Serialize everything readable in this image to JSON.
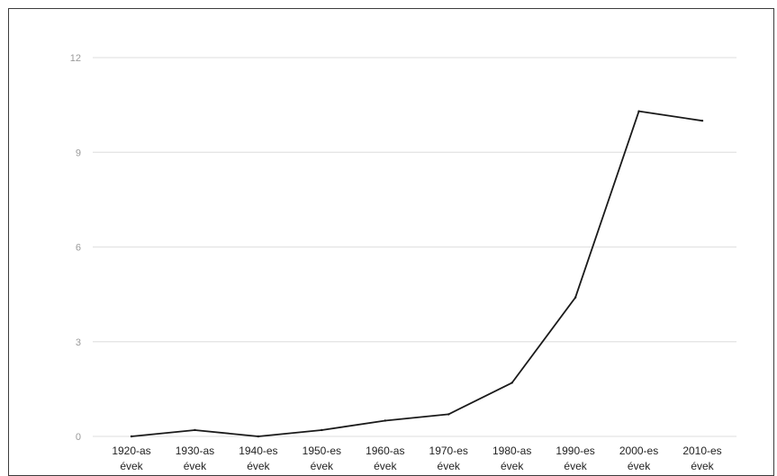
{
  "chart_data": {
    "type": "line",
    "categories": [
      [
        "1920-as",
        "évek"
      ],
      [
        "1930-as",
        "évek"
      ],
      [
        "1940-es",
        "évek"
      ],
      [
        "1950-es",
        "évek"
      ],
      [
        "1960-as",
        "évek"
      ],
      [
        "1970-es",
        "évek"
      ],
      [
        "1980-as",
        "évek"
      ],
      [
        "1990-es",
        "évek"
      ],
      [
        "2000-es",
        "évek"
      ],
      [
        "2010-es",
        "évek"
      ]
    ],
    "series": [
      {
        "values": [
          0,
          0.2,
          0,
          0.2,
          0.5,
          0.7,
          1.7,
          4.4,
          10.3,
          10.0
        ]
      }
    ],
    "yticks": [
      "0",
      "3",
      "6",
      "9",
      "12"
    ],
    "ylim": [
      0,
      12
    ],
    "grid": true,
    "line_color": "#1a1a1a",
    "grid_color": "#e3e3e3",
    "title": "",
    "xlabel": "",
    "ylabel": ""
  }
}
